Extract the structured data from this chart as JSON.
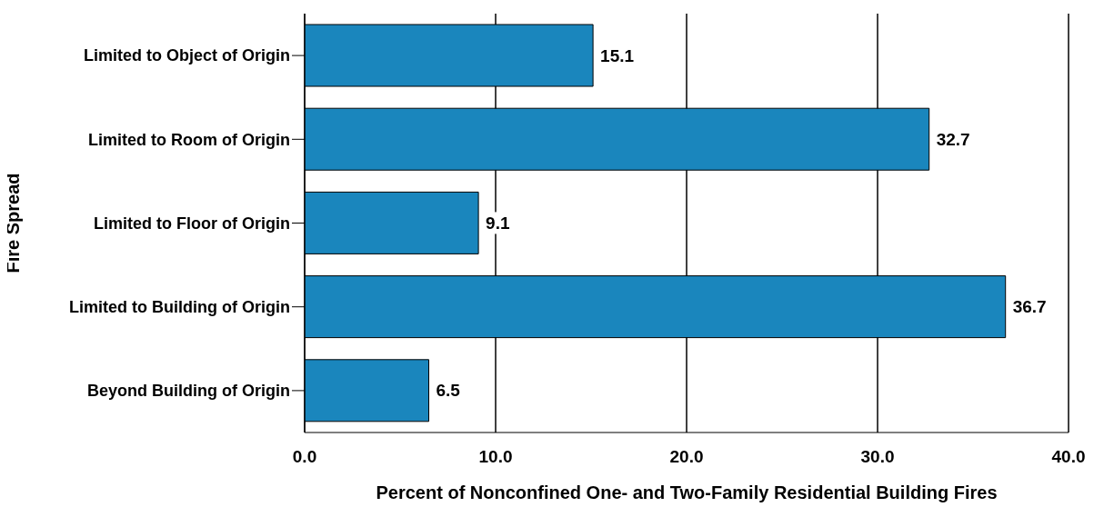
{
  "chart_data": {
    "type": "bar",
    "orientation": "horizontal",
    "xlabel": "Percent of Nonconfined One- and Two-Family Residential Building Fires",
    "ylabel": "Fire Spread",
    "categories": [
      "Limited to Object of Origin",
      "Limited to Room of Origin",
      "Limited to Floor of Origin",
      "Limited to Building of Origin",
      "Beyond Building of Origin"
    ],
    "values": [
      15.1,
      32.7,
      9.1,
      36.7,
      6.5
    ],
    "color": "#1a86bd",
    "xlim": [
      0,
      40
    ],
    "xticks": [
      {
        "value": 0,
        "label": "0.0"
      },
      {
        "value": 10,
        "label": "10.0"
      },
      {
        "value": 20,
        "label": "20.0"
      },
      {
        "value": 30,
        "label": "30.0"
      },
      {
        "value": 40,
        "label": "40.0"
      }
    ],
    "grid": "x",
    "data_labels": true
  }
}
